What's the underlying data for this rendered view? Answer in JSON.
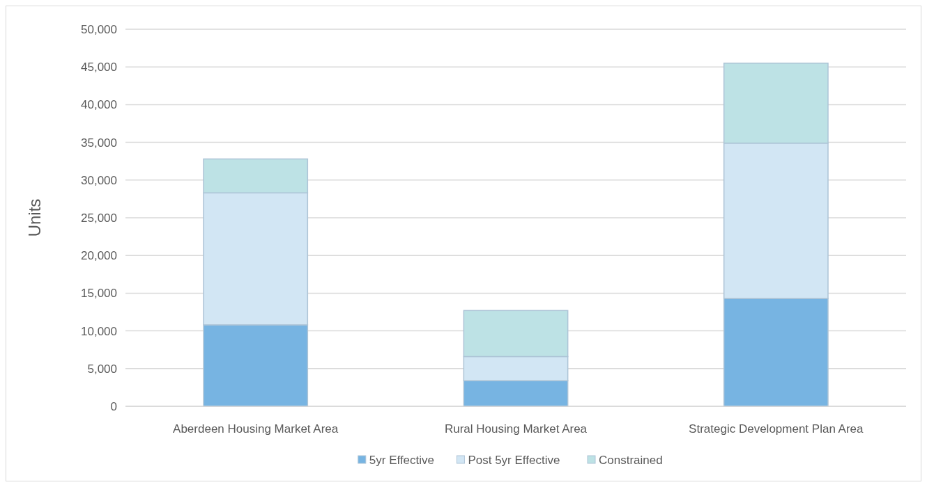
{
  "chart_data": {
    "type": "bar",
    "stacked": true,
    "ylabel": "Units",
    "categories": [
      "Aberdeen Housing Market Area",
      "Rural Housing Market Area",
      "Strategic Development Plan Area"
    ],
    "series": [
      {
        "name": "5yr Effective",
        "color": "#77b4e2",
        "values": [
          10800,
          3400,
          14300
        ]
      },
      {
        "name": "Post 5yr Effective",
        "color": "#d2e6f4",
        "values": [
          17500,
          3200,
          20600
        ]
      },
      {
        "name": "Constrained",
        "color": "#bde2e5",
        "values": [
          4500,
          6100,
          10600
        ]
      }
    ],
    "ylim": [
      0,
      50000
    ],
    "yticks": [
      {
        "value": 0,
        "label": "0"
      },
      {
        "value": 5000,
        "label": "5,000"
      },
      {
        "value": 10000,
        "label": "10,000"
      },
      {
        "value": 15000,
        "label": "15,000"
      },
      {
        "value": 20000,
        "label": "20,000"
      },
      {
        "value": 25000,
        "label": "25,000"
      },
      {
        "value": 30000,
        "label": "30,000"
      },
      {
        "value": 35000,
        "label": "35,000"
      },
      {
        "value": 40000,
        "label": "40,000"
      },
      {
        "value": 45000,
        "label": "45,000"
      },
      {
        "value": 50000,
        "label": "50,000"
      }
    ],
    "grid": "y",
    "legend": "bottom"
  }
}
